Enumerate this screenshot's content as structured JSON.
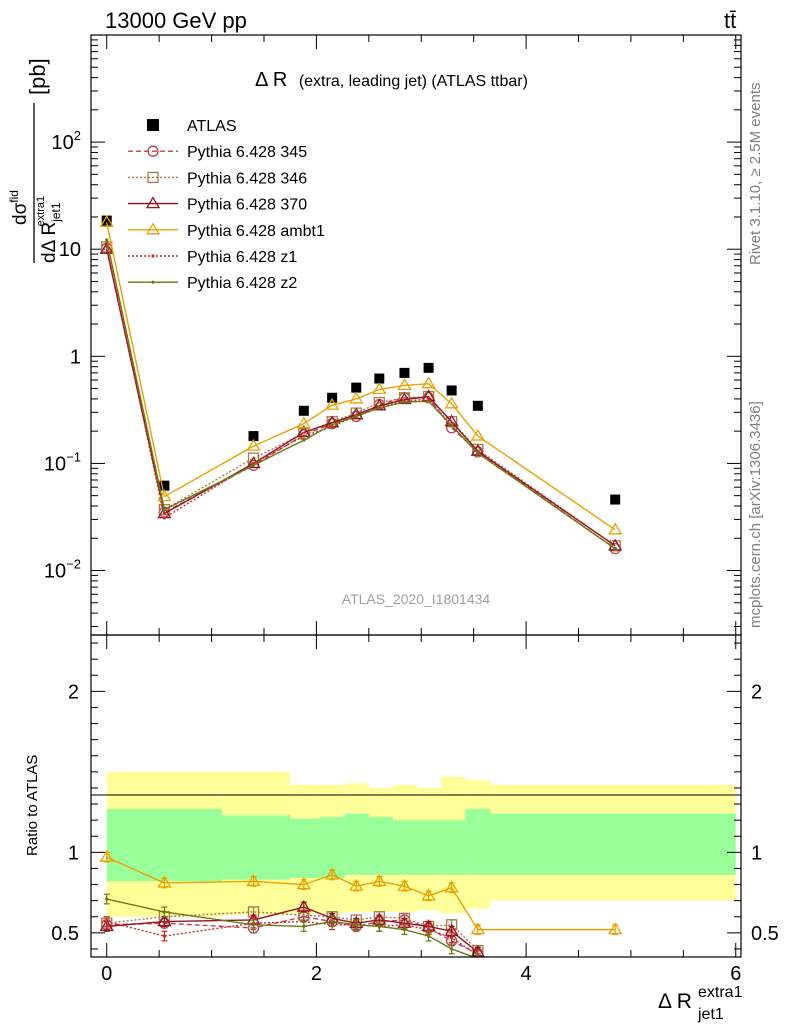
{
  "header": {
    "left": "13000 GeV pp",
    "right": "tt̄"
  },
  "side_labels": {
    "rivet": "Rivet 3.1.10, ≥ 2.5M events",
    "mcplots": "mcplots.cern.ch [arXiv:1306.3436]"
  },
  "chart_data": [
    {
      "type": "scatter",
      "panel": "main",
      "title": "Δ R (extra, leading jet) (ATLAS ttbar)",
      "title_main": "Δ R",
      "title_paren": "(extra, leading jet) (ATLAS ttbar)",
      "ylabel": "dσ^fid / dΔ R_jet1^extra1 [pb]",
      "ylabel_parts": {
        "d1": "d",
        "sig": "σ",
        "fid": "fid",
        "d2": "dΔ R",
        "jet": "jet1",
        "extra": "extra1",
        "unit": "[pb]"
      },
      "watermark": "ATLAS_2020_I1801434",
      "ylog": true,
      "xlim": [
        -0.15,
        6.05
      ],
      "ylim": [
        0.0025,
        1000
      ],
      "yticks": [
        0.01,
        0.1,
        1,
        10,
        100
      ],
      "ytick_labels": [
        {
          "base": "10",
          "exp": "−2"
        },
        {
          "base": "10",
          "exp": "−1"
        },
        {
          "base": "1",
          "exp": ""
        },
        {
          "base": "10",
          "exp": ""
        },
        {
          "base": "10",
          "exp": "2"
        }
      ],
      "legend_position": "top-left",
      "x": [
        0.0,
        0.55,
        1.4,
        1.88,
        2.15,
        2.38,
        2.6,
        2.84,
        3.07,
        3.29,
        3.54,
        4.85
      ],
      "series": [
        {
          "name": "ATLAS",
          "color": "#000000",
          "marker": "square",
          "line": "none",
          "values": [
            18.5,
            0.062,
            0.18,
            0.31,
            0.41,
            0.51,
            0.62,
            0.7,
            0.78,
            0.48,
            0.345,
            0.046
          ]
        },
        {
          "name": "Pythia 6.428 345",
          "color": "#c0404a",
          "marker": "circle-open",
          "line": "dashed",
          "values": [
            10.2,
            0.035,
            0.096,
            0.185,
            0.235,
            0.275,
            0.355,
            0.41,
            0.41,
            0.215,
            0.128,
            0.016
          ]
        },
        {
          "name": "Pythia 6.428 346",
          "color": "#a87a4c",
          "marker": "square-open",
          "line": "dotted",
          "values": [
            10.5,
            0.037,
            0.112,
            0.19,
            0.245,
            0.295,
            0.37,
            0.41,
            0.42,
            0.245,
            0.135,
            0.017
          ]
        },
        {
          "name": "Pythia 6.428 370",
          "color": "#99101e",
          "marker": "triangle-open",
          "line": "solid",
          "values": [
            10.0,
            0.034,
            0.1,
            0.195,
            0.24,
            0.285,
            0.345,
            0.395,
            0.42,
            0.245,
            0.13,
            0.017
          ]
        },
        {
          "name": "Pythia 6.428 ambt1",
          "color": "#eea000",
          "marker": "triangle-open",
          "line": "solid",
          "values": [
            17.8,
            0.049,
            0.145,
            0.235,
            0.35,
            0.4,
            0.49,
            0.535,
            0.555,
            0.36,
            0.18,
            0.024
          ]
        },
        {
          "name": "Pythia 6.428 z1",
          "color": "#cc2a2a",
          "marker": "dot",
          "line": "dotted",
          "values": [
            10.6,
            0.031,
            0.1,
            0.18,
            0.22,
            0.28,
            0.335,
            0.38,
            0.4,
            0.225,
            0.125,
            0.016
          ]
        },
        {
          "name": "Pythia 6.428 z2",
          "color": "#6b7a10",
          "marker": "dot",
          "line": "solid",
          "values": [
            12.2,
            0.037,
            0.096,
            0.165,
            0.23,
            0.275,
            0.33,
            0.375,
            0.38,
            0.225,
            0.125,
            0.016
          ]
        }
      ]
    },
    {
      "type": "scatter",
      "panel": "ratio",
      "ylabel": "Ratio to ATLAS",
      "xlabel": "Δ R_jet1^extra1",
      "xlabel_parts": {
        "main": "Δ R",
        "sub": "jet1",
        "sup": "extra1"
      },
      "xlim": [
        -0.15,
        6.05
      ],
      "ylim": [
        0.35,
        2.35
      ],
      "xticks": [
        0,
        2,
        4,
        6
      ],
      "yticks": [
        0.5,
        1,
        2
      ],
      "bands": {
        "edges": [
          0.0,
          1.1,
          1.75,
          2.03,
          2.27,
          2.5,
          2.73,
          2.96,
          3.19,
          3.42,
          3.66,
          6.0
        ],
        "yellow": [
          [
            0.6,
            1.5
          ],
          [
            0.61,
            1.5
          ],
          [
            0.62,
            1.42
          ],
          [
            0.62,
            1.42
          ],
          [
            0.63,
            1.43
          ],
          [
            0.63,
            1.4
          ],
          [
            0.63,
            1.42
          ],
          [
            0.64,
            1.4
          ],
          [
            0.62,
            1.47
          ],
          [
            0.65,
            1.45
          ],
          [
            0.7,
            1.42
          ],
          [
            0.7,
            1.42
          ]
        ],
        "green": [
          [
            0.82,
            1.27
          ],
          [
            0.83,
            1.23
          ],
          [
            0.84,
            1.21
          ],
          [
            0.84,
            1.22
          ],
          [
            0.86,
            1.24
          ],
          [
            0.86,
            1.22
          ],
          [
            0.86,
            1.2
          ],
          [
            0.86,
            1.2
          ],
          [
            0.86,
            1.2
          ],
          [
            0.86,
            1.27
          ],
          [
            0.86,
            1.24
          ],
          [
            0.86,
            1.24
          ]
        ]
      },
      "series": [
        {
          "name": "Pythia 6.428 345",
          "values": [
            0.55,
            0.56,
            0.53,
            0.6,
            0.57,
            0.54,
            0.57,
            0.58,
            0.53,
            0.45,
            0.37,
            null
          ]
        },
        {
          "name": "Pythia 6.428 346",
          "values": [
            0.56,
            0.6,
            0.63,
            0.61,
            0.6,
            0.58,
            0.6,
            0.59,
            0.54,
            0.55,
            0.39,
            null
          ]
        },
        {
          "name": "Pythia 6.428 370",
          "values": [
            0.54,
            0.57,
            0.58,
            0.66,
            0.59,
            0.56,
            0.58,
            0.56,
            0.54,
            0.51,
            0.38,
            null
          ]
        },
        {
          "name": "Pythia 6.428 ambt1",
          "values": [
            0.97,
            0.81,
            0.82,
            0.8,
            0.86,
            0.79,
            0.82,
            0.79,
            0.73,
            0.78,
            0.52,
            0.52
          ]
        },
        {
          "name": "Pythia 6.428 z1",
          "values": [
            0.57,
            0.48,
            0.56,
            0.57,
            0.55,
            0.55,
            0.54,
            0.55,
            0.52,
            0.47,
            0.36,
            null
          ]
        },
        {
          "name": "Pythia 6.428 z2",
          "values": [
            0.71,
            0.63,
            0.55,
            0.54,
            0.57,
            0.55,
            0.54,
            0.52,
            0.48,
            0.4,
            0.34,
            null
          ]
        }
      ]
    }
  ]
}
